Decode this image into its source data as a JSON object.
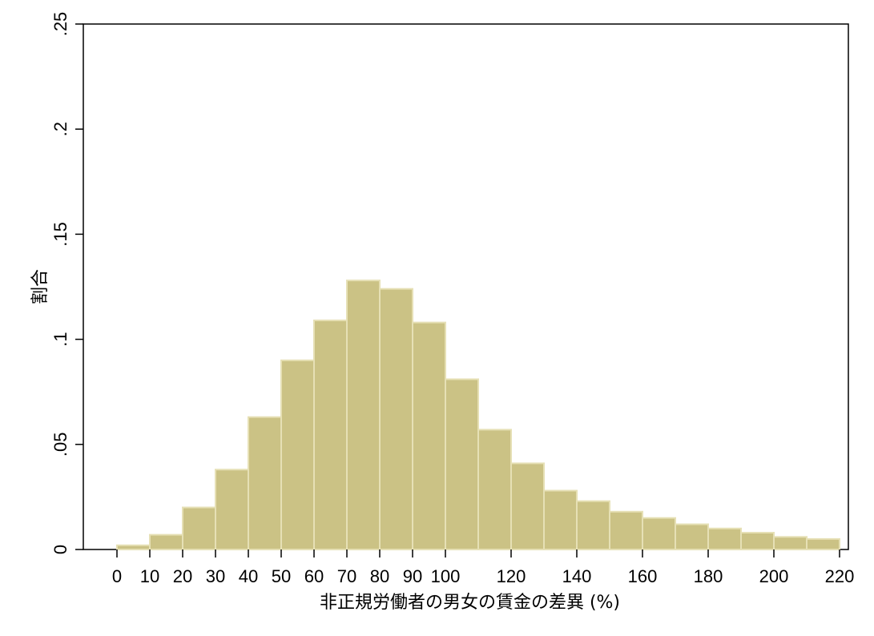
{
  "chart_data": {
    "type": "bar",
    "subtype": "histogram",
    "title": "",
    "xlabel": "非正規労働者の男女の賃金の差異 (%)",
    "ylabel": "割合",
    "xlim": [
      0,
      220
    ],
    "ylim": [
      0,
      0.25
    ],
    "bin_width": 10,
    "bin_starts": [
      0,
      10,
      20,
      30,
      40,
      50,
      60,
      70,
      80,
      90,
      100,
      110,
      120,
      130,
      140,
      150,
      160,
      170,
      180,
      190,
      200,
      210
    ],
    "values": [
      0.002,
      0.007,
      0.02,
      0.038,
      0.063,
      0.09,
      0.109,
      0.128,
      0.124,
      0.108,
      0.081,
      0.057,
      0.041,
      0.028,
      0.023,
      0.018,
      0.015,
      0.012,
      0.01,
      0.008,
      0.006,
      0.005
    ],
    "x_ticks": [
      0,
      10,
      20,
      30,
      40,
      50,
      60,
      70,
      80,
      90,
      100,
      120,
      140,
      160,
      180,
      200,
      220
    ],
    "x_tick_labels": [
      "0",
      "10",
      "20",
      "30",
      "40",
      "50",
      "60",
      "70",
      "80",
      "90",
      "100",
      "120",
      "140",
      "160",
      "180",
      "200",
      "220"
    ],
    "y_ticks": [
      0,
      0.05,
      0.1,
      0.15,
      0.2,
      0.25
    ],
    "y_tick_labels": [
      "0",
      ".05",
      ".1",
      ".15",
      ".2",
      ".25"
    ],
    "grid": false,
    "legend": "none",
    "colors": {
      "bar_fill": "#cbc285",
      "bar_edge": "#e6e0b5",
      "axis": "#000000",
      "background": "#ffffff"
    }
  }
}
